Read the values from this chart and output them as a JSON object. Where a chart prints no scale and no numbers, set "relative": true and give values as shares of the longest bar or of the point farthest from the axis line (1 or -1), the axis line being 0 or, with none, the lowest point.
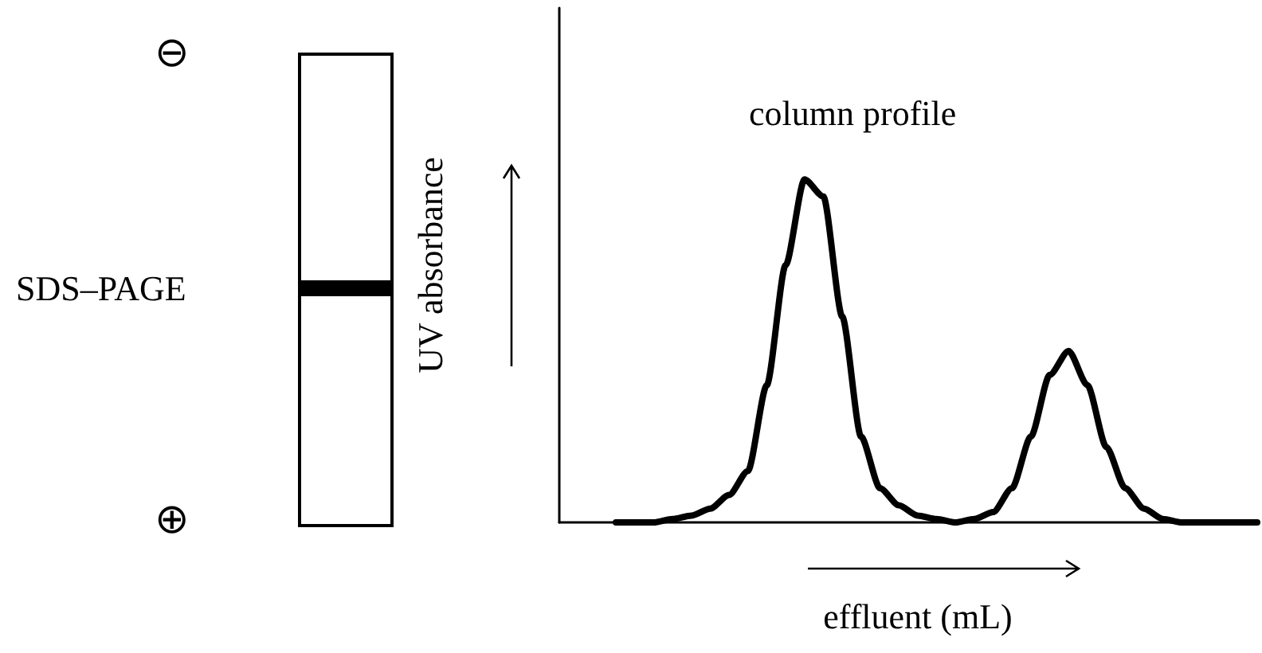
{
  "chart_data": {
    "type": "line",
    "title": "column profile",
    "xlabel": "effluent (mL)",
    "ylabel": "UV absorbance",
    "relative": true,
    "marker": "none",
    "line_style": "solid",
    "grid": false,
    "annotations": [
      "SDS–PAGE",
      "⊖",
      "⊕"
    ],
    "categories": [
      null,
      null,
      null,
      null,
      null,
      null,
      null,
      null,
      null,
      null,
      null,
      null,
      null,
      null,
      null,
      null,
      null,
      null,
      null,
      null,
      null,
      null,
      null,
      null,
      null,
      null,
      null,
      null,
      null,
      null,
      null,
      null,
      null,
      null,
      null,
      null,
      null,
      null
    ],
    "series": [
      {
        "color": "#000000",
        "values": [
          null,
          null,
          null,
          0,
          0,
          0,
          0.01,
          0.02,
          0.04,
          0.08,
          0.15,
          0.4,
          0.75,
          1,
          0.95,
          0.6,
          0.25,
          0.1,
          0.05,
          0.02,
          0.01,
          0,
          0.01,
          0.03,
          0.1,
          0.25,
          0.43,
          0.5,
          0.4,
          0.22,
          0.1,
          0.04,
          0.01,
          0,
          0,
          0,
          0,
          0
        ]
      }
    ]
  }
}
